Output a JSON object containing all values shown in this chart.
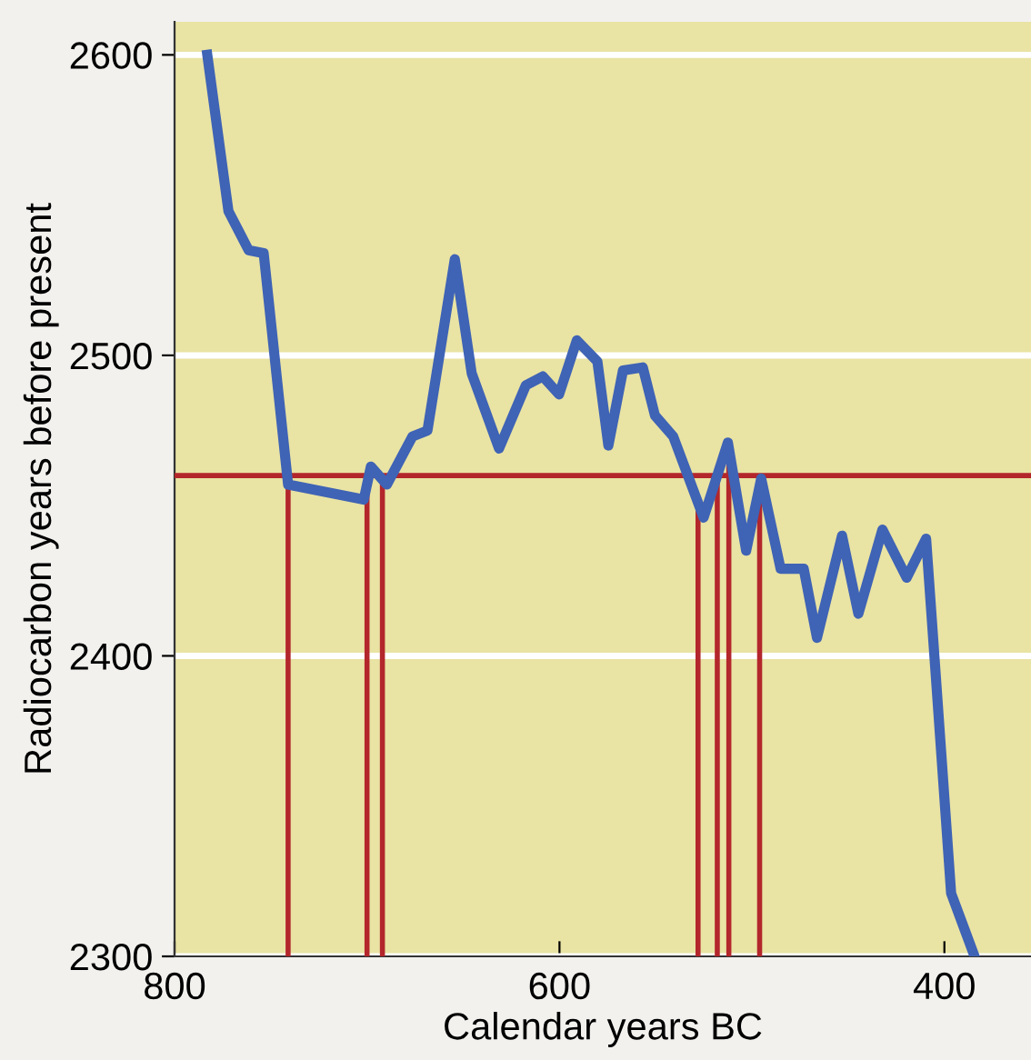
{
  "chart_data": {
    "type": "line",
    "xlabel": "Calendar years BC",
    "ylabel": "Radiocarbon years before present",
    "xlim": [
      800,
      355
    ],
    "ylim": [
      2300,
      2611
    ],
    "xticks": [
      800,
      600,
      400
    ],
    "yticks": [
      2300,
      2400,
      2500,
      2600
    ],
    "grid": "y",
    "line_style": "solid",
    "series": [
      {
        "color": "#3f63b5",
        "x": [
          783,
          772,
          761.5,
          753.7,
          741,
          701.7,
          698,
          689.7,
          676.4,
          668.6,
          654.4,
          645.6,
          631.4,
          617.5,
          608.7,
          600.2,
          591,
          580.3,
          574.6,
          567,
          556.7,
          550.4,
          540.9,
          525.1,
          512.5,
          503,
          495.2,
          485.1,
          473.1,
          466.2,
          453.2,
          444.7,
          432.2,
          419.6,
          409.5,
          396.5,
          384.9
        ],
        "values": [
          2600,
          2548,
          2535,
          2534,
          2457,
          2452,
          2463,
          2457,
          2473,
          2475,
          2532,
          2494,
          2469,
          2490,
          2493,
          2487,
          2505,
          2498,
          2470,
          2495,
          2496,
          2480,
          2473,
          2446,
          2471,
          2435,
          2459,
          2429,
          2429,
          2406,
          2440,
          2414,
          2442,
          2426,
          2439,
          2321,
          2301
        ]
      }
    ],
    "ref_lines": [
      {
        "axis": "y",
        "value": 2460,
        "color": "#b3262b"
      },
      {
        "axis": "x",
        "value": 741,
        "color": "#b3262b"
      },
      {
        "axis": "x",
        "value": 700,
        "color": "#b3262b"
      },
      {
        "axis": "x",
        "value": 692,
        "color": "#b3262b"
      },
      {
        "axis": "x",
        "value": 528,
        "color": "#b3262b"
      },
      {
        "axis": "x",
        "value": 518,
        "color": "#b3262b"
      },
      {
        "axis": "x",
        "value": 512,
        "color": "#b3262b"
      },
      {
        "axis": "x",
        "value": 496,
        "color": "#b3262b"
      }
    ]
  }
}
